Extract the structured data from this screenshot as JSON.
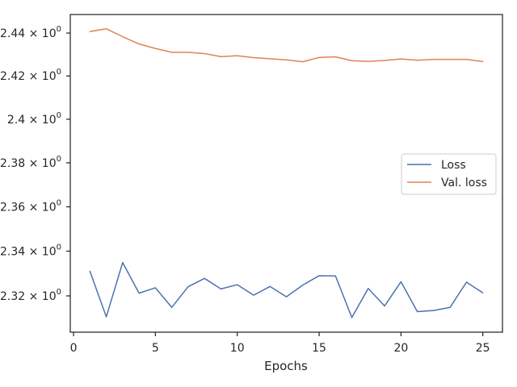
{
  "chart_data": {
    "type": "line",
    "xlabel": "Epochs",
    "ylabel": "",
    "xlim": [
      -0.2,
      26.2
    ],
    "ylim": [
      2.3039,
      2.4487
    ],
    "x_ticks": [
      0,
      5,
      10,
      15,
      20,
      25
    ],
    "x_tick_labels": [
      "0",
      "5",
      "10",
      "15",
      "20",
      "25"
    ],
    "y_ticks": [
      2.32,
      2.34,
      2.36,
      2.38,
      2.4,
      2.42,
      2.44
    ],
    "y_tick_labels": [
      {
        "mantissa": "2.32",
        "base": "10",
        "exp": "0"
      },
      {
        "mantissa": "2.34",
        "base": "10",
        "exp": "0"
      },
      {
        "mantissa": "2.36",
        "base": "10",
        "exp": "0"
      },
      {
        "mantissa": "2.38",
        "base": "10",
        "exp": "0"
      },
      {
        "mantissa": "2.4",
        "base": "10",
        "exp": "0"
      },
      {
        "mantissa": "2.42",
        "base": "10",
        "exp": "0"
      },
      {
        "mantissa": "2.44",
        "base": "10",
        "exp": "0"
      }
    ],
    "log_scale_y": true,
    "grid": false,
    "legend_position": "center-right",
    "x": [
      1,
      2,
      3,
      4,
      5,
      6,
      7,
      8,
      9,
      10,
      11,
      12,
      13,
      14,
      15,
      16,
      17,
      18,
      19,
      20,
      21,
      22,
      23,
      24,
      25
    ],
    "series": [
      {
        "name": "Loss",
        "color": "#4c72b0",
        "values": [
          2.331,
          2.3107,
          2.3349,
          2.3212,
          2.3236,
          2.3149,
          2.3241,
          2.3278,
          2.3231,
          2.325,
          2.3203,
          2.3242,
          2.3196,
          2.3248,
          2.329,
          2.3289,
          2.3104,
          2.3233,
          2.3155,
          2.3263,
          2.313,
          2.3135,
          2.3149,
          2.3261,
          2.3214
        ]
      },
      {
        "name": "Val. loss",
        "color": "#dd8452",
        "values": [
          2.4407,
          2.442,
          2.4383,
          2.4349,
          2.4328,
          2.431,
          2.431,
          2.4304,
          2.429,
          2.4294,
          2.4285,
          2.428,
          2.4275,
          2.4266,
          2.4286,
          2.4289,
          2.4271,
          2.4268,
          2.4272,
          2.4279,
          2.4273,
          2.4277,
          2.4277,
          2.4277,
          2.4267
        ]
      }
    ]
  }
}
